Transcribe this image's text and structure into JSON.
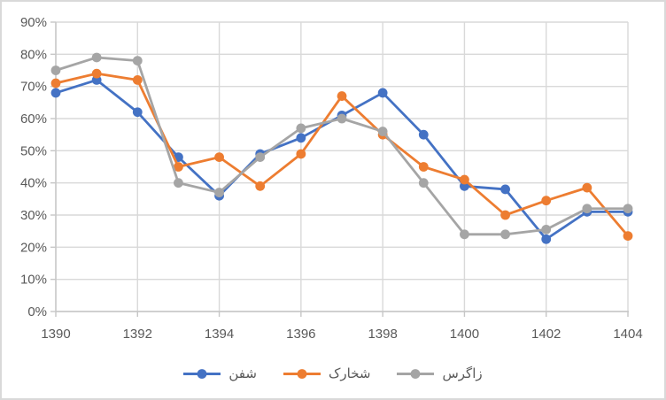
{
  "chart": {
    "background": "#FFFFFF",
    "border_color": "#D9D9D9",
    "gridline_color": "#D9D9D9",
    "axis_line_color": "#C6C6C6",
    "tick_label_color": "#595959"
  },
  "chart_data": {
    "type": "line",
    "title": "",
    "xlabel": "",
    "ylabel": "",
    "marker": "circle",
    "grid": true,
    "legend_position": "bottom",
    "categories": [
      1390,
      1391,
      1392,
      1393,
      1394,
      1395,
      1396,
      1397,
      1398,
      1399,
      1400,
      1401,
      1402,
      1403,
      1404
    ],
    "x_tick_labels": [
      "1390",
      "1392",
      "1394",
      "1396",
      "1398",
      "1400",
      "1402",
      "1404"
    ],
    "x_label_interval": 2,
    "ylim": [
      0,
      90
    ],
    "y_ticks": [
      0,
      10,
      20,
      30,
      40,
      50,
      60,
      70,
      80,
      90
    ],
    "y_tick_labels": [
      "0%",
      "10%",
      "20%",
      "30%",
      "40%",
      "50%",
      "60%",
      "70%",
      "80%",
      "90%"
    ],
    "series": [
      {
        "id": "shafan",
        "name": "شفن",
        "color": "#4472C4",
        "values": [
          68,
          72,
          62,
          48,
          36,
          49,
          54,
          61,
          68,
          55,
          39,
          38,
          22.5,
          31,
          31
        ]
      },
      {
        "id": "shakharak",
        "name": "شخارک",
        "color": "#ED7D31",
        "values": [
          71,
          74,
          72,
          45,
          48,
          39,
          49,
          67,
          55,
          45,
          41,
          30,
          34.5,
          38.5,
          23.5
        ]
      },
      {
        "id": "zagros",
        "name": "زاگرس",
        "color": "#A5A5A5",
        "values": [
          75,
          79,
          78,
          40,
          37,
          48,
          57,
          60,
          56,
          40,
          24,
          24,
          25.5,
          32,
          32
        ]
      }
    ]
  }
}
